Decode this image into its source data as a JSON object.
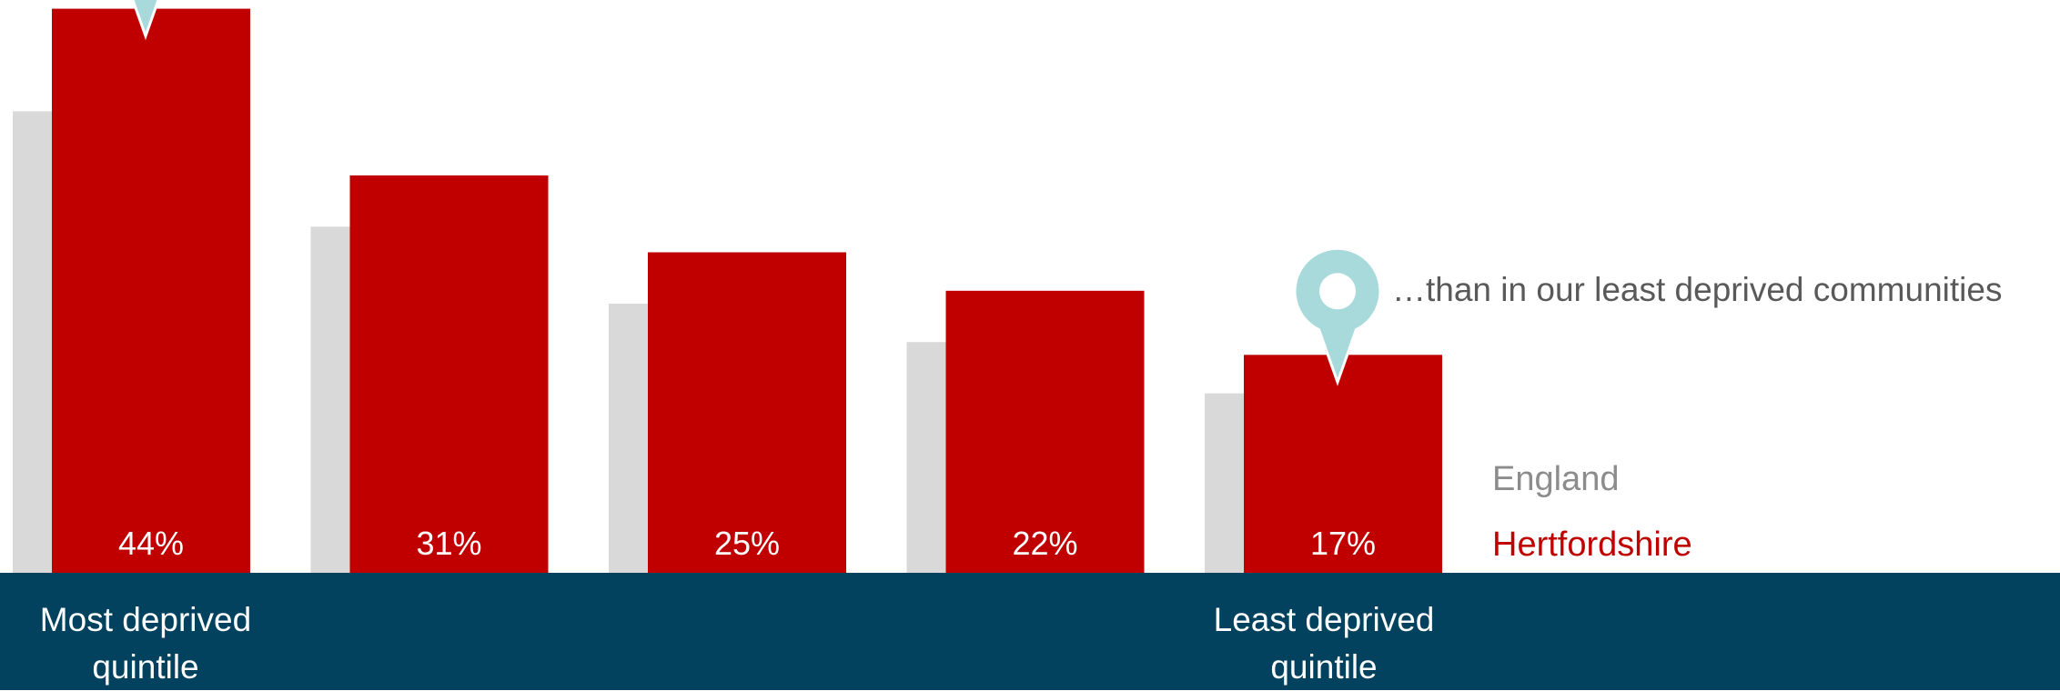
{
  "chart_data": {
    "type": "bar",
    "categories": [
      "Most deprived quintile",
      "",
      "",
      "",
      "Least deprived quintile"
    ],
    "series": [
      {
        "name": "England",
        "values": [
          36,
          27,
          21,
          18,
          14
        ],
        "color": "#d9d9d9"
      },
      {
        "name": "Hertfordshire",
        "values": [
          44,
          31,
          25,
          22,
          17
        ],
        "color": "#c00000"
      }
    ],
    "data_labels": [
      "44%",
      "31%",
      "25%",
      "22%",
      "17%"
    ],
    "ylim": [
      0,
      45
    ],
    "grid": false,
    "legend_position": "right",
    "markers": [
      {
        "category_index": 0,
        "icon": "map-pin-icon",
        "color": "#a8dadc"
      },
      {
        "category_index": 4,
        "icon": "map-pin-icon",
        "color": "#a8dadc"
      }
    ]
  },
  "annotation": "…than in our least deprived communities",
  "legend": {
    "england": "England",
    "hertfordshire": "Hertfordshire"
  },
  "axis_labels": {
    "most": "Most deprived quintile",
    "least": "Least deprived quintile"
  },
  "colors": {
    "band": "#02425f",
    "england": "#d9d9d9",
    "hertfordshire": "#c00000",
    "marker": "#a8dadc"
  }
}
